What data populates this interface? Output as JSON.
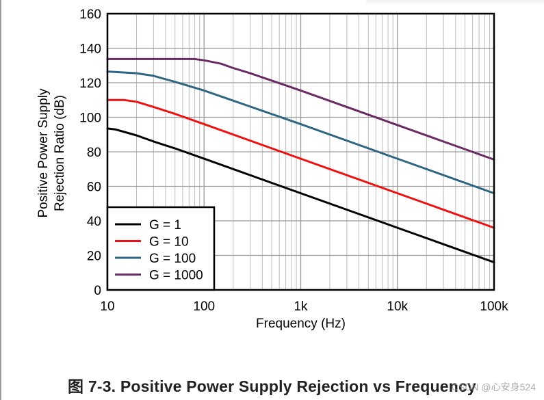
{
  "chart_data": {
    "type": "line",
    "x_scale": "log",
    "xlabel": "Frequency (Hz)",
    "ylabel_lines": [
      "Positive Power Supply",
      "Rejection Ratio (dB)"
    ],
    "xlim": [
      10,
      100000
    ],
    "ylim": [
      0,
      160
    ],
    "x_ticks": [
      10,
      100,
      1000,
      10000,
      100000
    ],
    "x_tick_labels": [
      "10",
      "100",
      "1k",
      "10k",
      "100k"
    ],
    "y_ticks": [
      0,
      20,
      40,
      60,
      80,
      100,
      120,
      140,
      160
    ],
    "y_tick_labels": [
      "0",
      "20",
      "40",
      "60",
      "80",
      "100",
      "120",
      "140",
      "160"
    ],
    "grid": true,
    "legend_position": "bottom-left",
    "series": [
      {
        "name": "G = 1",
        "color": "#000000",
        "x": [
          10,
          12,
          15,
          20,
          30,
          50,
          100,
          1000,
          10000,
          100000
        ],
        "y": [
          93.5,
          93,
          91.5,
          89.5,
          86,
          82,
          76,
          56,
          36,
          16
        ]
      },
      {
        "name": "G = 10",
        "color": "#ee1111",
        "x": [
          10,
          15,
          20,
          30,
          50,
          100,
          1000,
          10000,
          100000
        ],
        "y": [
          110,
          110,
          109,
          106,
          102,
          96,
          76,
          56,
          36
        ]
      },
      {
        "name": "G = 100",
        "color": "#2e6580",
        "x": [
          10,
          20,
          30,
          50,
          100,
          1000,
          10000,
          100000
        ],
        "y": [
          126.5,
          125.5,
          124,
          120.5,
          115.5,
          96,
          76,
          56
        ]
      },
      {
        "name": "G = 1000",
        "color": "#6a2a66",
        "x": [
          10,
          50,
          80,
          100,
          150,
          200,
          300,
          1000,
          10000,
          100000
        ],
        "y": [
          133.7,
          133.7,
          133.7,
          133,
          131,
          128.5,
          125.5,
          115.5,
          95.5,
          75.5
        ]
      }
    ]
  },
  "caption": "图 7-3. Positive Power Supply Rejection vs Frequency",
  "watermark": "CSDN @心安身524"
}
